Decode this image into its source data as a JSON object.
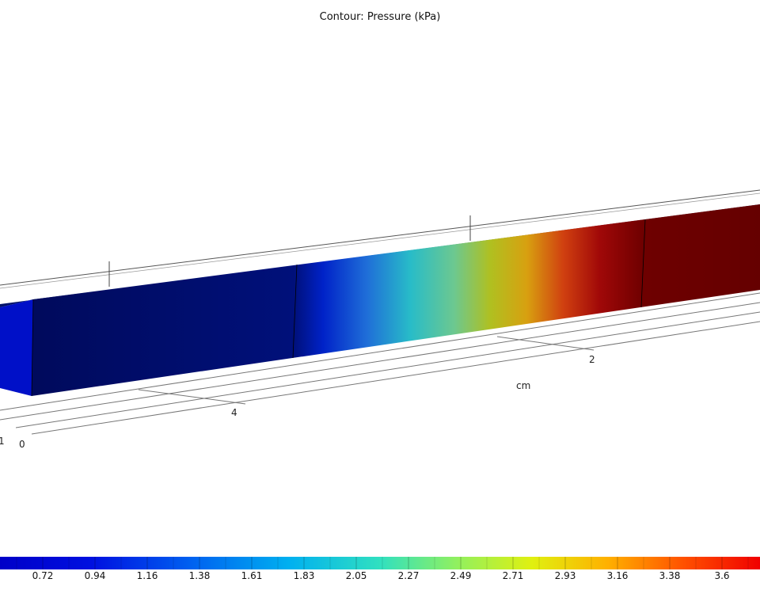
{
  "title": "Contour: Pressure (kPa)",
  "axis_unit": "cm",
  "axis_ticks": [
    "2",
    "4",
    "0",
    "1"
  ],
  "colorbar": {
    "labels": [
      "0.72",
      "0.94",
      "1.16",
      "1.38",
      "1.61",
      "1.83",
      "2.05",
      "2.27",
      "2.49",
      "2.71",
      "2.93",
      "3.16",
      "3.38",
      "3.6"
    ]
  },
  "colors": {
    "low": "#00007f",
    "mid": "#2fd0c0",
    "high": "#7a0000"
  }
}
